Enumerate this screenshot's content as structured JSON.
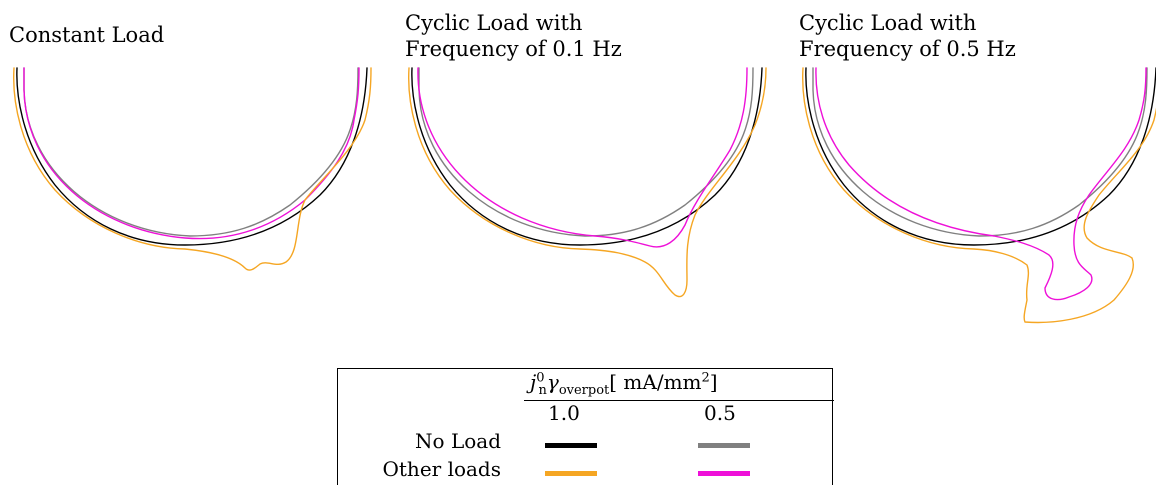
{
  "panels": [
    {
      "title_lines": [
        "Constant Load"
      ]
    },
    {
      "title_lines": [
        "Cyclic Load with",
        "Frequency of 0.1 Hz"
      ]
    },
    {
      "title_lines": [
        "Cyclic Load with",
        "Frequency of 0.5 Hz"
      ]
    }
  ],
  "legend": {
    "header_symbol": "j",
    "header_sup": "0",
    "header_sub_n": "n",
    "header_gamma": "γ",
    "header_sub_overpot": "overpot",
    "header_unit": "[ mA/mm",
    "header_unit_sup": "2",
    "header_unit_close": "]",
    "col1": "1.0",
    "col2": "0.5",
    "row1_label": "No Load",
    "row2_label": "Other loads"
  },
  "colors": {
    "no_load_1": "#000000",
    "no_load_05": "#808080",
    "other_1": "#f5a623",
    "other_05": "#ee10d8"
  }
}
